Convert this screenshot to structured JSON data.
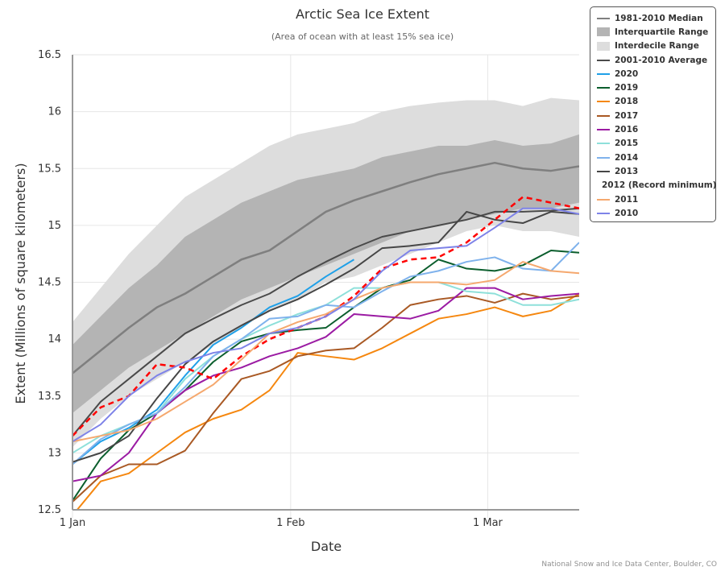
{
  "chart_data": {
    "type": "line",
    "title": "Arctic Sea Ice Extent",
    "subtitle": "(Area of ocean with at least 15% sea ice)",
    "xlabel": "Date",
    "ylabel": "Extent (Millions of square kilometers)",
    "credit": "National Snow and Ice Data Center, Boulder, CO",
    "ylim": [
      12.5,
      16.5
    ],
    "xlim_days": [
      0,
      72
    ],
    "yticks": [
      "12.5",
      "13",
      "13.5",
      "14",
      "14.5",
      "15",
      "15.5",
      "16",
      "16.5"
    ],
    "ytick_values": [
      12.5,
      13,
      13.5,
      14,
      14.5,
      15,
      15.5,
      16,
      16.5
    ],
    "xticks": [
      {
        "label": "1 Jan",
        "day": 0
      },
      {
        "label": "1 Feb",
        "day": 31
      },
      {
        "label": "1 Mar",
        "day": 59
      }
    ],
    "grid": true,
    "legend_position": "right",
    "x_days": [
      0,
      4,
      8,
      12,
      16,
      20,
      24,
      28,
      32,
      36,
      40,
      44,
      48,
      52,
      56,
      60,
      64,
      68,
      72
    ],
    "bands": [
      {
        "name": "Interdecile Range",
        "color": "#dddddd",
        "lower": [
          13.05,
          13.3,
          13.5,
          13.65,
          13.8,
          13.95,
          14.1,
          14.25,
          14.35,
          14.5,
          14.55,
          14.65,
          14.75,
          14.85,
          14.95,
          15.0,
          14.95,
          14.95,
          14.9
        ],
        "upper": [
          14.15,
          14.45,
          14.75,
          15.0,
          15.25,
          15.4,
          15.55,
          15.7,
          15.8,
          15.85,
          15.9,
          16.0,
          16.05,
          16.08,
          16.1,
          16.1,
          16.05,
          16.12,
          16.1
        ]
      },
      {
        "name": "Interquartile Range",
        "color": "#b4b4b4",
        "lower": [
          13.35,
          13.55,
          13.75,
          13.9,
          14.05,
          14.2,
          14.35,
          14.45,
          14.55,
          14.65,
          14.75,
          14.85,
          14.95,
          15.0,
          15.05,
          15.1,
          15.15,
          15.15,
          15.2
        ],
        "upper": [
          13.95,
          14.2,
          14.45,
          14.65,
          14.9,
          15.05,
          15.2,
          15.3,
          15.4,
          15.45,
          15.5,
          15.6,
          15.65,
          15.7,
          15.7,
          15.75,
          15.7,
          15.72,
          15.8
        ]
      }
    ],
    "series": [
      {
        "name": "1981-2010 Median",
        "color": "#7f7f7f",
        "width": 2.5,
        "dash": "",
        "values": [
          13.7,
          13.9,
          14.1,
          14.28,
          14.4,
          14.55,
          14.7,
          14.78,
          14.95,
          15.12,
          15.22,
          15.3,
          15.38,
          15.45,
          15.5,
          15.55,
          15.5,
          15.48,
          15.52
        ]
      },
      {
        "name": "2001-2010 Average",
        "color": "#4a4a4a",
        "width": 2,
        "dash": "",
        "values": [
          13.15,
          13.45,
          13.65,
          13.85,
          14.05,
          14.18,
          14.3,
          14.4,
          14.55,
          14.68,
          14.8,
          14.9,
          14.95,
          15.0,
          15.05,
          15.12,
          15.12,
          15.13,
          15.15
        ]
      },
      {
        "name": "2020",
        "color": "#1fa0e8",
        "width": 2,
        "dash": "",
        "values": [
          12.9,
          13.1,
          13.22,
          13.38,
          13.68,
          13.95,
          14.1,
          14.28,
          14.38,
          14.55,
          14.7,
          null,
          null,
          null,
          null,
          null,
          null,
          null,
          null
        ]
      },
      {
        "name": "2019",
        "color": "#0b5e2d",
        "width": 2,
        "dash": "",
        "values": [
          12.58,
          12.95,
          13.2,
          13.35,
          13.55,
          13.8,
          13.98,
          14.05,
          14.08,
          14.1,
          14.28,
          14.45,
          14.52,
          14.7,
          14.62,
          14.6,
          14.65,
          14.78,
          14.76
        ]
      },
      {
        "name": "2018",
        "color": "#f5870f",
        "width": 2,
        "dash": "",
        "values": [
          12.45,
          12.75,
          12.82,
          13.0,
          13.18,
          13.3,
          13.38,
          13.55,
          13.88,
          13.85,
          13.82,
          13.92,
          14.05,
          14.18,
          14.22,
          14.28,
          14.2,
          14.25,
          14.4
        ]
      },
      {
        "name": "2017",
        "color": "#a95924",
        "width": 2,
        "dash": "",
        "values": [
          12.57,
          12.8,
          12.9,
          12.9,
          13.02,
          13.35,
          13.65,
          13.72,
          13.85,
          13.9,
          13.92,
          14.1,
          14.3,
          14.35,
          14.38,
          14.32,
          14.4,
          14.35,
          14.38
        ]
      },
      {
        "name": "2016",
        "color": "#9b1ba3",
        "width": 2,
        "dash": "",
        "values": [
          12.75,
          12.8,
          13.0,
          13.35,
          13.55,
          13.68,
          13.75,
          13.85,
          13.92,
          14.02,
          14.22,
          14.2,
          14.18,
          14.25,
          14.45,
          14.45,
          14.35,
          14.38,
          14.4
        ]
      },
      {
        "name": "2015",
        "color": "#8ee0da",
        "width": 2,
        "dash": "",
        "values": [
          13.0,
          13.15,
          13.25,
          13.35,
          13.65,
          13.85,
          14.0,
          14.12,
          14.22,
          14.3,
          14.45,
          14.45,
          14.5,
          14.5,
          14.42,
          14.4,
          14.3,
          14.3,
          14.35
        ]
      },
      {
        "name": "2014",
        "color": "#7fb2ec",
        "width": 2,
        "dash": "",
        "values": [
          12.9,
          13.12,
          13.25,
          13.35,
          13.58,
          13.85,
          14.0,
          14.18,
          14.2,
          14.3,
          14.28,
          14.42,
          14.55,
          14.6,
          14.68,
          14.72,
          14.62,
          14.6,
          14.85
        ]
      },
      {
        "name": "2013",
        "color": "#464646",
        "width": 2,
        "dash": "",
        "values": [
          12.92,
          13.0,
          13.15,
          13.48,
          13.78,
          13.98,
          14.12,
          14.25,
          14.35,
          14.48,
          14.62,
          14.8,
          14.82,
          14.85,
          15.12,
          15.05,
          15.02,
          15.12,
          15.1
        ]
      },
      {
        "name": "2012 (Record minimum)",
        "color": "#ff0000",
        "width": 2.5,
        "dash": "7,5",
        "values": [
          13.15,
          13.4,
          13.5,
          13.78,
          13.75,
          13.65,
          13.85,
          14.0,
          14.1,
          14.2,
          14.38,
          14.62,
          14.7,
          14.72,
          14.85,
          15.05,
          15.25,
          15.2,
          15.15
        ]
      },
      {
        "name": "2011",
        "color": "#f5a86e",
        "width": 2,
        "dash": "",
        "values": [
          13.1,
          13.15,
          13.2,
          13.3,
          13.45,
          13.6,
          13.82,
          14.05,
          14.15,
          14.22,
          14.35,
          14.45,
          14.5,
          14.5,
          14.48,
          14.52,
          14.68,
          14.6,
          14.58
        ]
      },
      {
        "name": "2010",
        "color": "#7e83e8",
        "width": 2,
        "dash": "",
        "values": [
          13.1,
          13.25,
          13.5,
          13.68,
          13.8,
          13.88,
          13.92,
          14.05,
          14.1,
          14.2,
          14.35,
          14.6,
          14.78,
          14.8,
          14.82,
          14.98,
          15.15,
          15.15,
          15.1
        ]
      }
    ]
  },
  "legend": {
    "items": [
      {
        "label": "1981-2010 Median",
        "type": "line",
        "color": "#7f7f7f"
      },
      {
        "label": "Interquartile Range",
        "type": "box",
        "color": "#b4b4b4"
      },
      {
        "label": "Interdecile Range",
        "type": "box",
        "color": "#dddddd"
      },
      {
        "label": "2001-2010 Average",
        "type": "line",
        "color": "#4a4a4a"
      },
      {
        "label": "2020",
        "type": "line",
        "color": "#1fa0e8"
      },
      {
        "label": "2019",
        "type": "line",
        "color": "#0b5e2d"
      },
      {
        "label": "2018",
        "type": "line",
        "color": "#f5870f"
      },
      {
        "label": "2017",
        "type": "line",
        "color": "#a95924"
      },
      {
        "label": "2016",
        "type": "line",
        "color": "#9b1ba3"
      },
      {
        "label": "2015",
        "type": "line",
        "color": "#8ee0da"
      },
      {
        "label": "2014",
        "type": "line",
        "color": "#7fb2ec"
      },
      {
        "label": "2013",
        "type": "line",
        "color": "#464646"
      },
      {
        "label": "2012 (Record minimum)",
        "type": "dash",
        "color": "#ff0000"
      },
      {
        "label": "2011",
        "type": "line",
        "color": "#f5a86e"
      },
      {
        "label": "2010",
        "type": "line",
        "color": "#7e83e8"
      }
    ]
  }
}
